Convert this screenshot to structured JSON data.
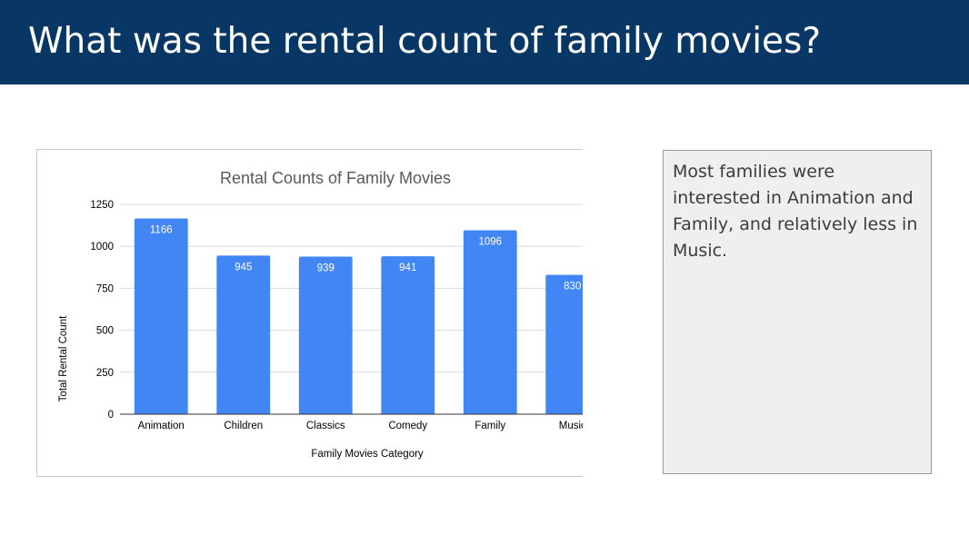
{
  "slide": {
    "title": "What was the rental count of family movies?",
    "header_color": "#083766"
  },
  "note": {
    "text": "Most families were interested in Animation and Family, and relatively less in Music."
  },
  "chart_data": {
    "type": "bar",
    "title": "Rental Counts of Family Movies",
    "xlabel": "Family Movies Category",
    "ylabel": "Total Rental Count",
    "categories": [
      "Animation",
      "Children",
      "Classics",
      "Comedy",
      "Family",
      "Music"
    ],
    "values": [
      1166,
      945,
      939,
      941,
      1096,
      830
    ],
    "yticks": [
      0,
      250,
      500,
      750,
      1000,
      1250
    ],
    "ylim": [
      0,
      1250
    ],
    "grid": true,
    "legend": "none",
    "bar_color": "#4285f4",
    "data_labels": true
  }
}
